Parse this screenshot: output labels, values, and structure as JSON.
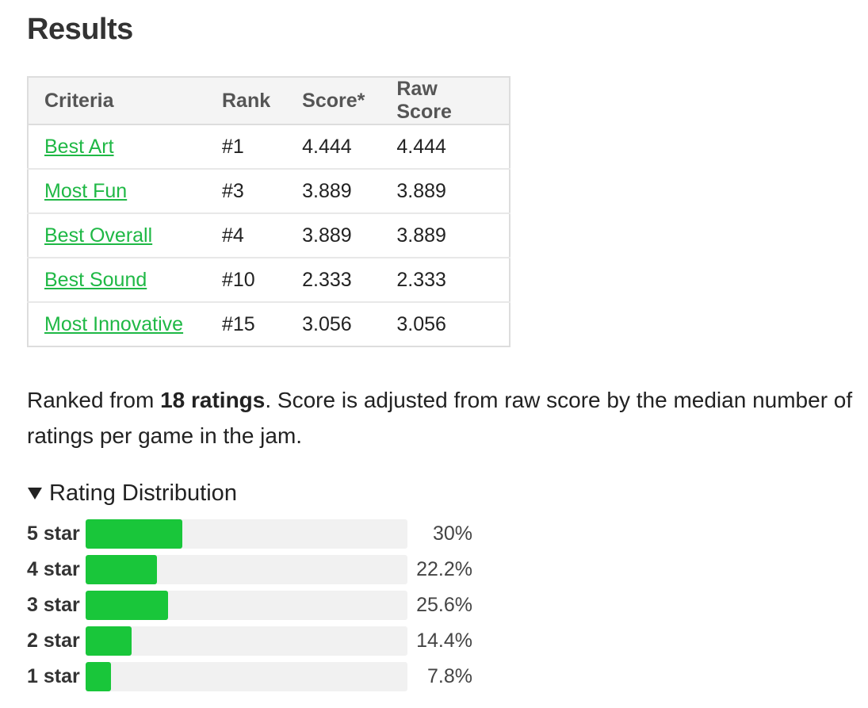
{
  "title": "Results",
  "table": {
    "headers": [
      "Criteria",
      "Rank",
      "Score*",
      "Raw Score"
    ],
    "rows": [
      {
        "criteria": "Best Art",
        "rank": "#1",
        "score": "4.444",
        "raw": "4.444"
      },
      {
        "criteria": "Most Fun",
        "rank": "#3",
        "score": "3.889",
        "raw": "3.889"
      },
      {
        "criteria": "Best Overall",
        "rank": "#4",
        "score": "3.889",
        "raw": "3.889"
      },
      {
        "criteria": "Best Sound",
        "rank": "#10",
        "score": "2.333",
        "raw": "2.333"
      },
      {
        "criteria": "Most Innovative",
        "rank": "#15",
        "score": "3.056",
        "raw": "3.056"
      }
    ]
  },
  "note": {
    "prefix": "Ranked from ",
    "bold": "18 ratings",
    "suffix": ". Score is adjusted from raw score by the median number of ratings per game in the jam."
  },
  "distribution": {
    "summary": "Rating Distribution",
    "bar_color": "#19c63a",
    "rows": [
      {
        "label": "5 star",
        "percent_text": "30%",
        "percent": 30
      },
      {
        "label": "4 star",
        "percent_text": "22.2%",
        "percent": 22.2
      },
      {
        "label": "3 star",
        "percent_text": "25.6%",
        "percent": 25.6
      },
      {
        "label": "2 star",
        "percent_text": "14.4%",
        "percent": 14.4
      },
      {
        "label": "1 star",
        "percent_text": "7.8%",
        "percent": 7.8
      }
    ]
  }
}
